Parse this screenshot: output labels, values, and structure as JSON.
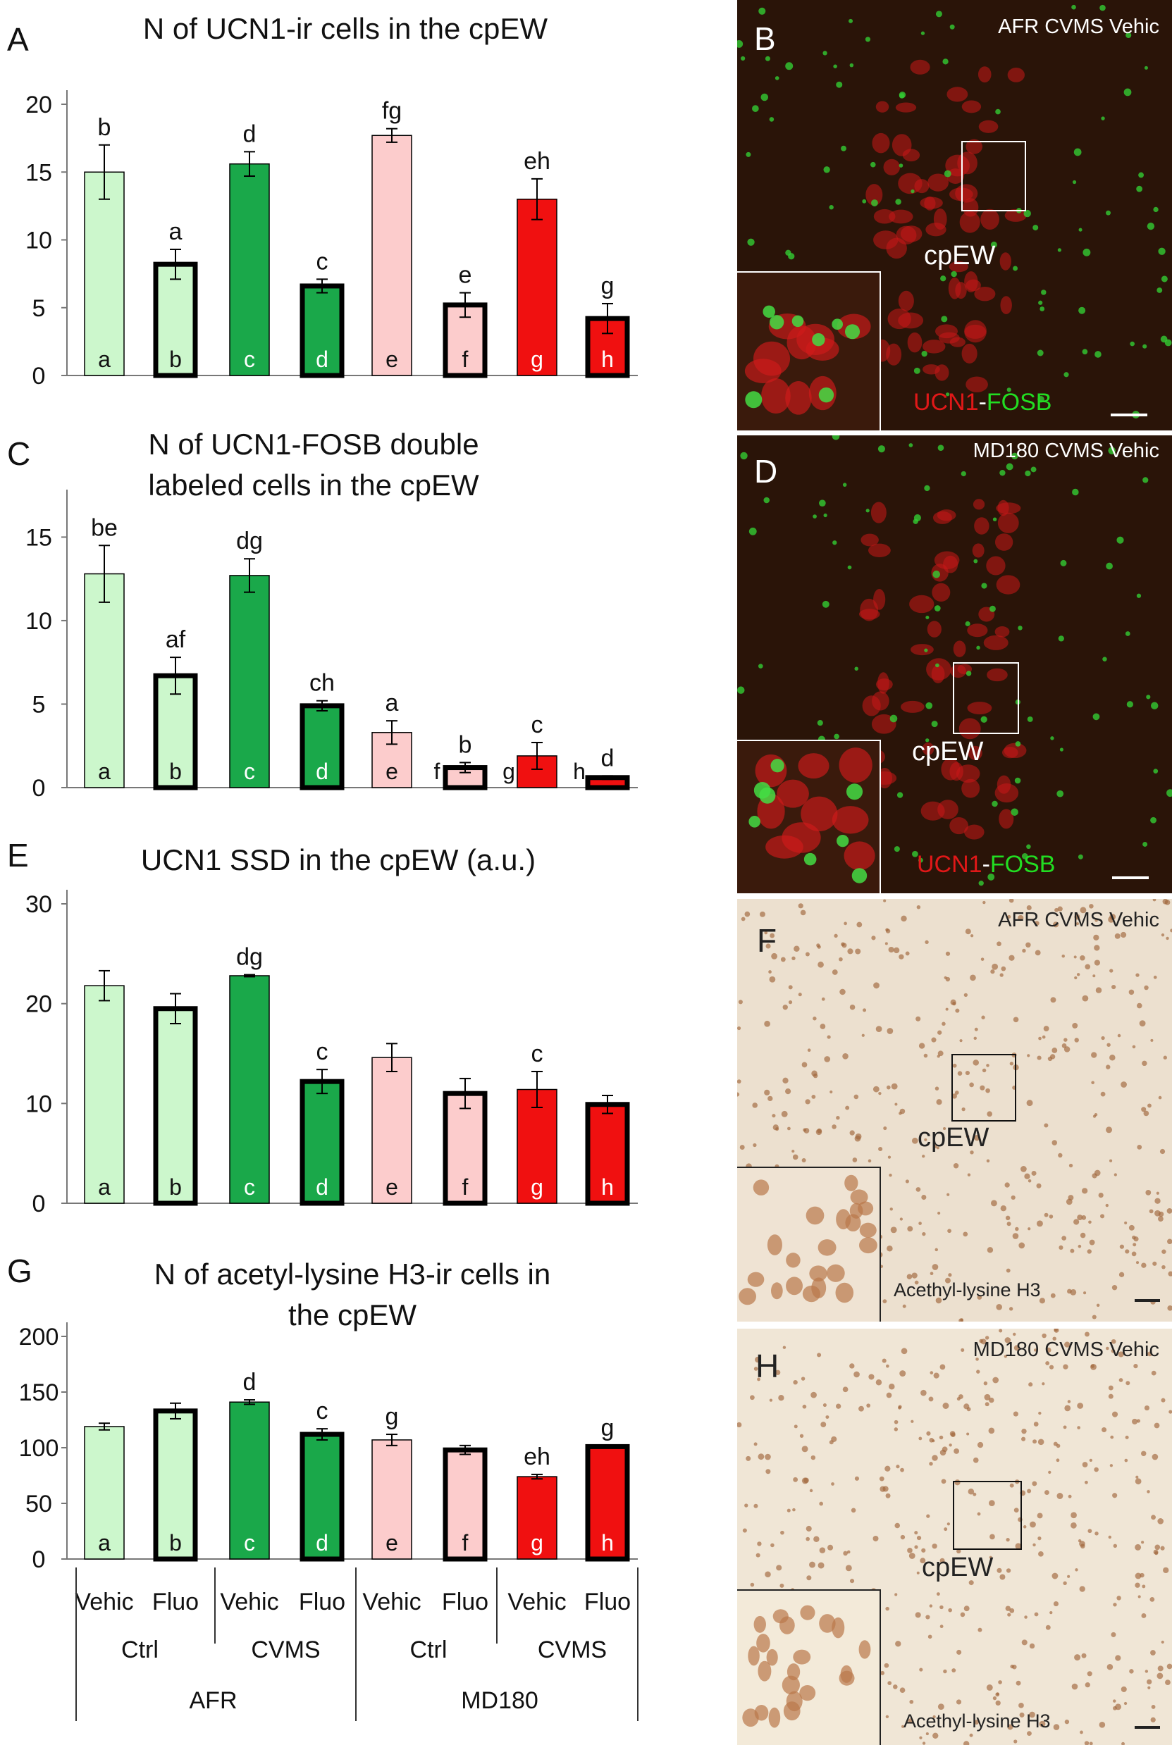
{
  "chart_data": [
    {
      "panel": "A",
      "type": "bar",
      "title": "N of UCN1-ir cells in the cpEW",
      "title_lines": [
        "N of UCN1-ir cells in the cpEW"
      ],
      "ylim": [
        0,
        20
      ],
      "yticks": [
        "0",
        "5",
        "10",
        "15",
        "20"
      ],
      "ytick_values": [
        0,
        5,
        10,
        15,
        20
      ],
      "categories": [
        "a",
        "b",
        "c",
        "d",
        "e",
        "f",
        "g",
        "h"
      ],
      "values": [
        15.0,
        8.2,
        15.6,
        6.6,
        17.7,
        5.2,
        13.0,
        4.2
      ],
      "errors": [
        2.0,
        1.1,
        0.9,
        0.5,
        0.5,
        0.9,
        1.5,
        1.1
      ],
      "sig_labels": [
        "b",
        "a",
        "d",
        "c",
        "fg",
        "e",
        "eh",
        "g"
      ],
      "bar_inner_labels": [
        "a",
        "b",
        "c",
        "d",
        "e",
        "f",
        "g",
        "h"
      ]
    },
    {
      "panel": "C",
      "type": "bar",
      "title": "N of UCN1-FOSB double labeled cells in the cpEW",
      "title_lines": [
        "N of UCN1-FOSB double",
        "labeled cells in the cpEW"
      ],
      "ylim": [
        0,
        17
      ],
      "yticks": [
        "0",
        "5",
        "10",
        "15"
      ],
      "ytick_values": [
        0,
        5,
        10,
        15
      ],
      "categories": [
        "a",
        "b",
        "c",
        "d",
        "e",
        "f",
        "g",
        "h"
      ],
      "values": [
        12.8,
        6.7,
        12.7,
        4.9,
        3.3,
        1.2,
        1.9,
        0.6
      ],
      "errors": [
        1.7,
        1.1,
        1.0,
        0.3,
        0.7,
        0.3,
        0.8,
        0.1
      ],
      "sig_labels": [
        "be",
        "af",
        "dg",
        "ch",
        "a",
        "b",
        "c",
        "d"
      ],
      "bar_inner_labels": [
        "a",
        "b",
        "c",
        "d",
        "e",
        "f",
        "g",
        "h"
      ],
      "inner_labels_outside": [
        false,
        false,
        false,
        false,
        false,
        true,
        true,
        true
      ]
    },
    {
      "panel": "E",
      "type": "bar",
      "title": "UCN1 SSD in the cpEW (a.u.)",
      "title_lines": [
        "UCN1 SSD in the cpEW (a.u.)"
      ],
      "ylim": [
        0,
        30
      ],
      "yticks": [
        "0",
        "10",
        "20",
        "30"
      ],
      "ytick_values": [
        0,
        10,
        20,
        30
      ],
      "categories": [
        "a",
        "b",
        "c",
        "d",
        "e",
        "f",
        "g",
        "h"
      ],
      "values": [
        21.8,
        19.5,
        22.8,
        12.2,
        14.6,
        11.0,
        11.4,
        9.9
      ],
      "errors": [
        1.5,
        1.5,
        0.1,
        1.2,
        1.4,
        1.5,
        1.8,
        0.9
      ],
      "sig_labels": [
        "",
        "",
        "dg",
        "c",
        "",
        "",
        "c",
        ""
      ],
      "bar_inner_labels": [
        "a",
        "b",
        "c",
        "d",
        "e",
        "f",
        "g",
        "h"
      ]
    },
    {
      "panel": "G",
      "type": "bar",
      "title": "N of acetyl-lysine H3-ir cells in the cpEW",
      "title_lines": [
        "N of acetyl-lysine H3-ir cells in",
        "the cpEW"
      ],
      "ylim": [
        0,
        200
      ],
      "yticks": [
        "0",
        "50",
        "100",
        "150",
        "200"
      ],
      "ytick_values": [
        0,
        50,
        100,
        150,
        200
      ],
      "categories": [
        "a",
        "b",
        "c",
        "d",
        "e",
        "f",
        "g",
        "h"
      ],
      "values": [
        119,
        133,
        141,
        112,
        107,
        98,
        74,
        101
      ],
      "errors": [
        3,
        7,
        2,
        5,
        5,
        4,
        2,
        1
      ],
      "sig_labels": [
        "",
        "",
        "d",
        "c",
        "g",
        "",
        "eh",
        "g"
      ],
      "bar_inner_labels": [
        "a",
        "b",
        "c",
        "d",
        "e",
        "f",
        "g",
        "h"
      ]
    }
  ],
  "groups": {
    "treatment": [
      "Vehic",
      "Fluo",
      "Vehic",
      "Fluo",
      "Vehic",
      "Fluo",
      "Vehic",
      "Fluo"
    ],
    "stress": [
      "Ctrl",
      "CVMS",
      "Ctrl",
      "CVMS"
    ],
    "rearing": [
      "AFR",
      "MD180"
    ]
  },
  "bar_colors": [
    "#ccf7cc",
    "#ccf7cc",
    "#1aa84a",
    "#1aa84a",
    "#fccccc",
    "#fccccc",
    "#f01010",
    "#f01010"
  ],
  "bar_thick_border": [
    false,
    true,
    false,
    true,
    false,
    true,
    false,
    true
  ],
  "micrographs": [
    {
      "panel": "B",
      "header": "AFR CVMS Vehic",
      "region": "cpEW",
      "stain_red": "UCN1",
      "stain_sep": "-",
      "stain_green": "FOSB",
      "kind": "fluorescence"
    },
    {
      "panel": "D",
      "header": "MD180 CVMS Vehic",
      "region": "cpEW",
      "stain_red": "UCN1",
      "stain_sep": "-",
      "stain_green": "FOSB",
      "kind": "fluorescence"
    },
    {
      "panel": "F",
      "header": "AFR CVMS Vehic",
      "region": "cpEW",
      "stain": "Acethyl-lysine H3",
      "kind": "ihc"
    },
    {
      "panel": "H",
      "header": "MD180 CVMS Vehic",
      "region": "cpEW",
      "stain": "Acethyl-lysine H3",
      "kind": "ihc"
    }
  ],
  "colors": {
    "fluo_red": "#e01818",
    "fluo_green": "#22dd22",
    "ihc_brown": "#a0653a"
  }
}
